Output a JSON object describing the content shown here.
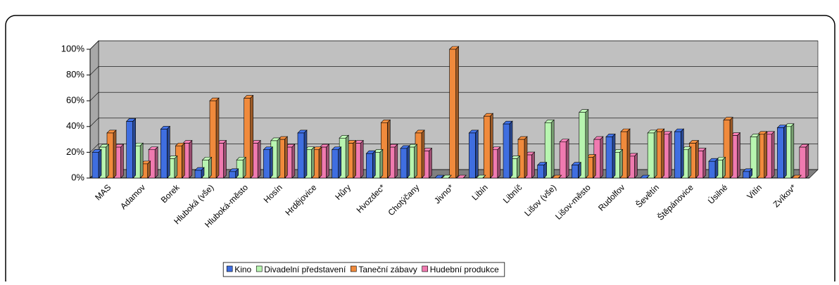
{
  "chart_data": {
    "type": "bar3d",
    "categories": [
      "MAS",
      "Adamov",
      "Borek",
      "Hluboká (vše)",
      "Hluboká-město",
      "Hosín",
      "Hrdějovice",
      "Hůry",
      "Hvozdec*",
      "Chotýčany",
      "Jivno*",
      "Libín",
      "Libníč",
      "Lišov (vše)",
      "Lišov-město",
      "Rudolfov",
      "Ševětín",
      "Štěpánovice",
      "Úsilné",
      "Vitín",
      "Zvíkov*"
    ],
    "series": [
      {
        "name": "Kino",
        "color": "#3f6ee0",
        "values": [
          20,
          44,
          38,
          6,
          5,
          22,
          35,
          22,
          19,
          23,
          0,
          35,
          42,
          10,
          10,
          32,
          0,
          36,
          13,
          5,
          39
        ]
      },
      {
        "name": "Divadelní představení",
        "color": "#b8f5b0",
        "values": [
          24,
          25,
          15,
          14,
          14,
          29,
          22,
          31,
          20,
          24,
          0,
          0,
          15,
          43,
          51,
          20,
          35,
          22,
          14,
          32,
          40
        ]
      },
      {
        "name": "Taneční zábavy",
        "color": "#f08a3c",
        "values": [
          35,
          11,
          25,
          60,
          62,
          30,
          22,
          27,
          43,
          35,
          100,
          48,
          30,
          0,
          16,
          36,
          36,
          27,
          45,
          34,
          0
        ]
      },
      {
        "name": "Hudební produkce",
        "color": "#f07ab0",
        "values": [
          24,
          22,
          27,
          27,
          27,
          24,
          24,
          27,
          24,
          21,
          0,
          22,
          18,
          28,
          30,
          17,
          34,
          21,
          33,
          34,
          24
        ]
      }
    ],
    "ylim": [
      0,
      100
    ],
    "yticks": [
      {
        "value": 0,
        "label": "0%"
      },
      {
        "value": 20,
        "label": "20%"
      },
      {
        "value": 40,
        "label": "40%"
      },
      {
        "value": 60,
        "label": "60%"
      },
      {
        "value": 80,
        "label": "80%"
      },
      {
        "value": 100,
        "label": "100%"
      }
    ],
    "grid": true,
    "legend": "bottom"
  }
}
